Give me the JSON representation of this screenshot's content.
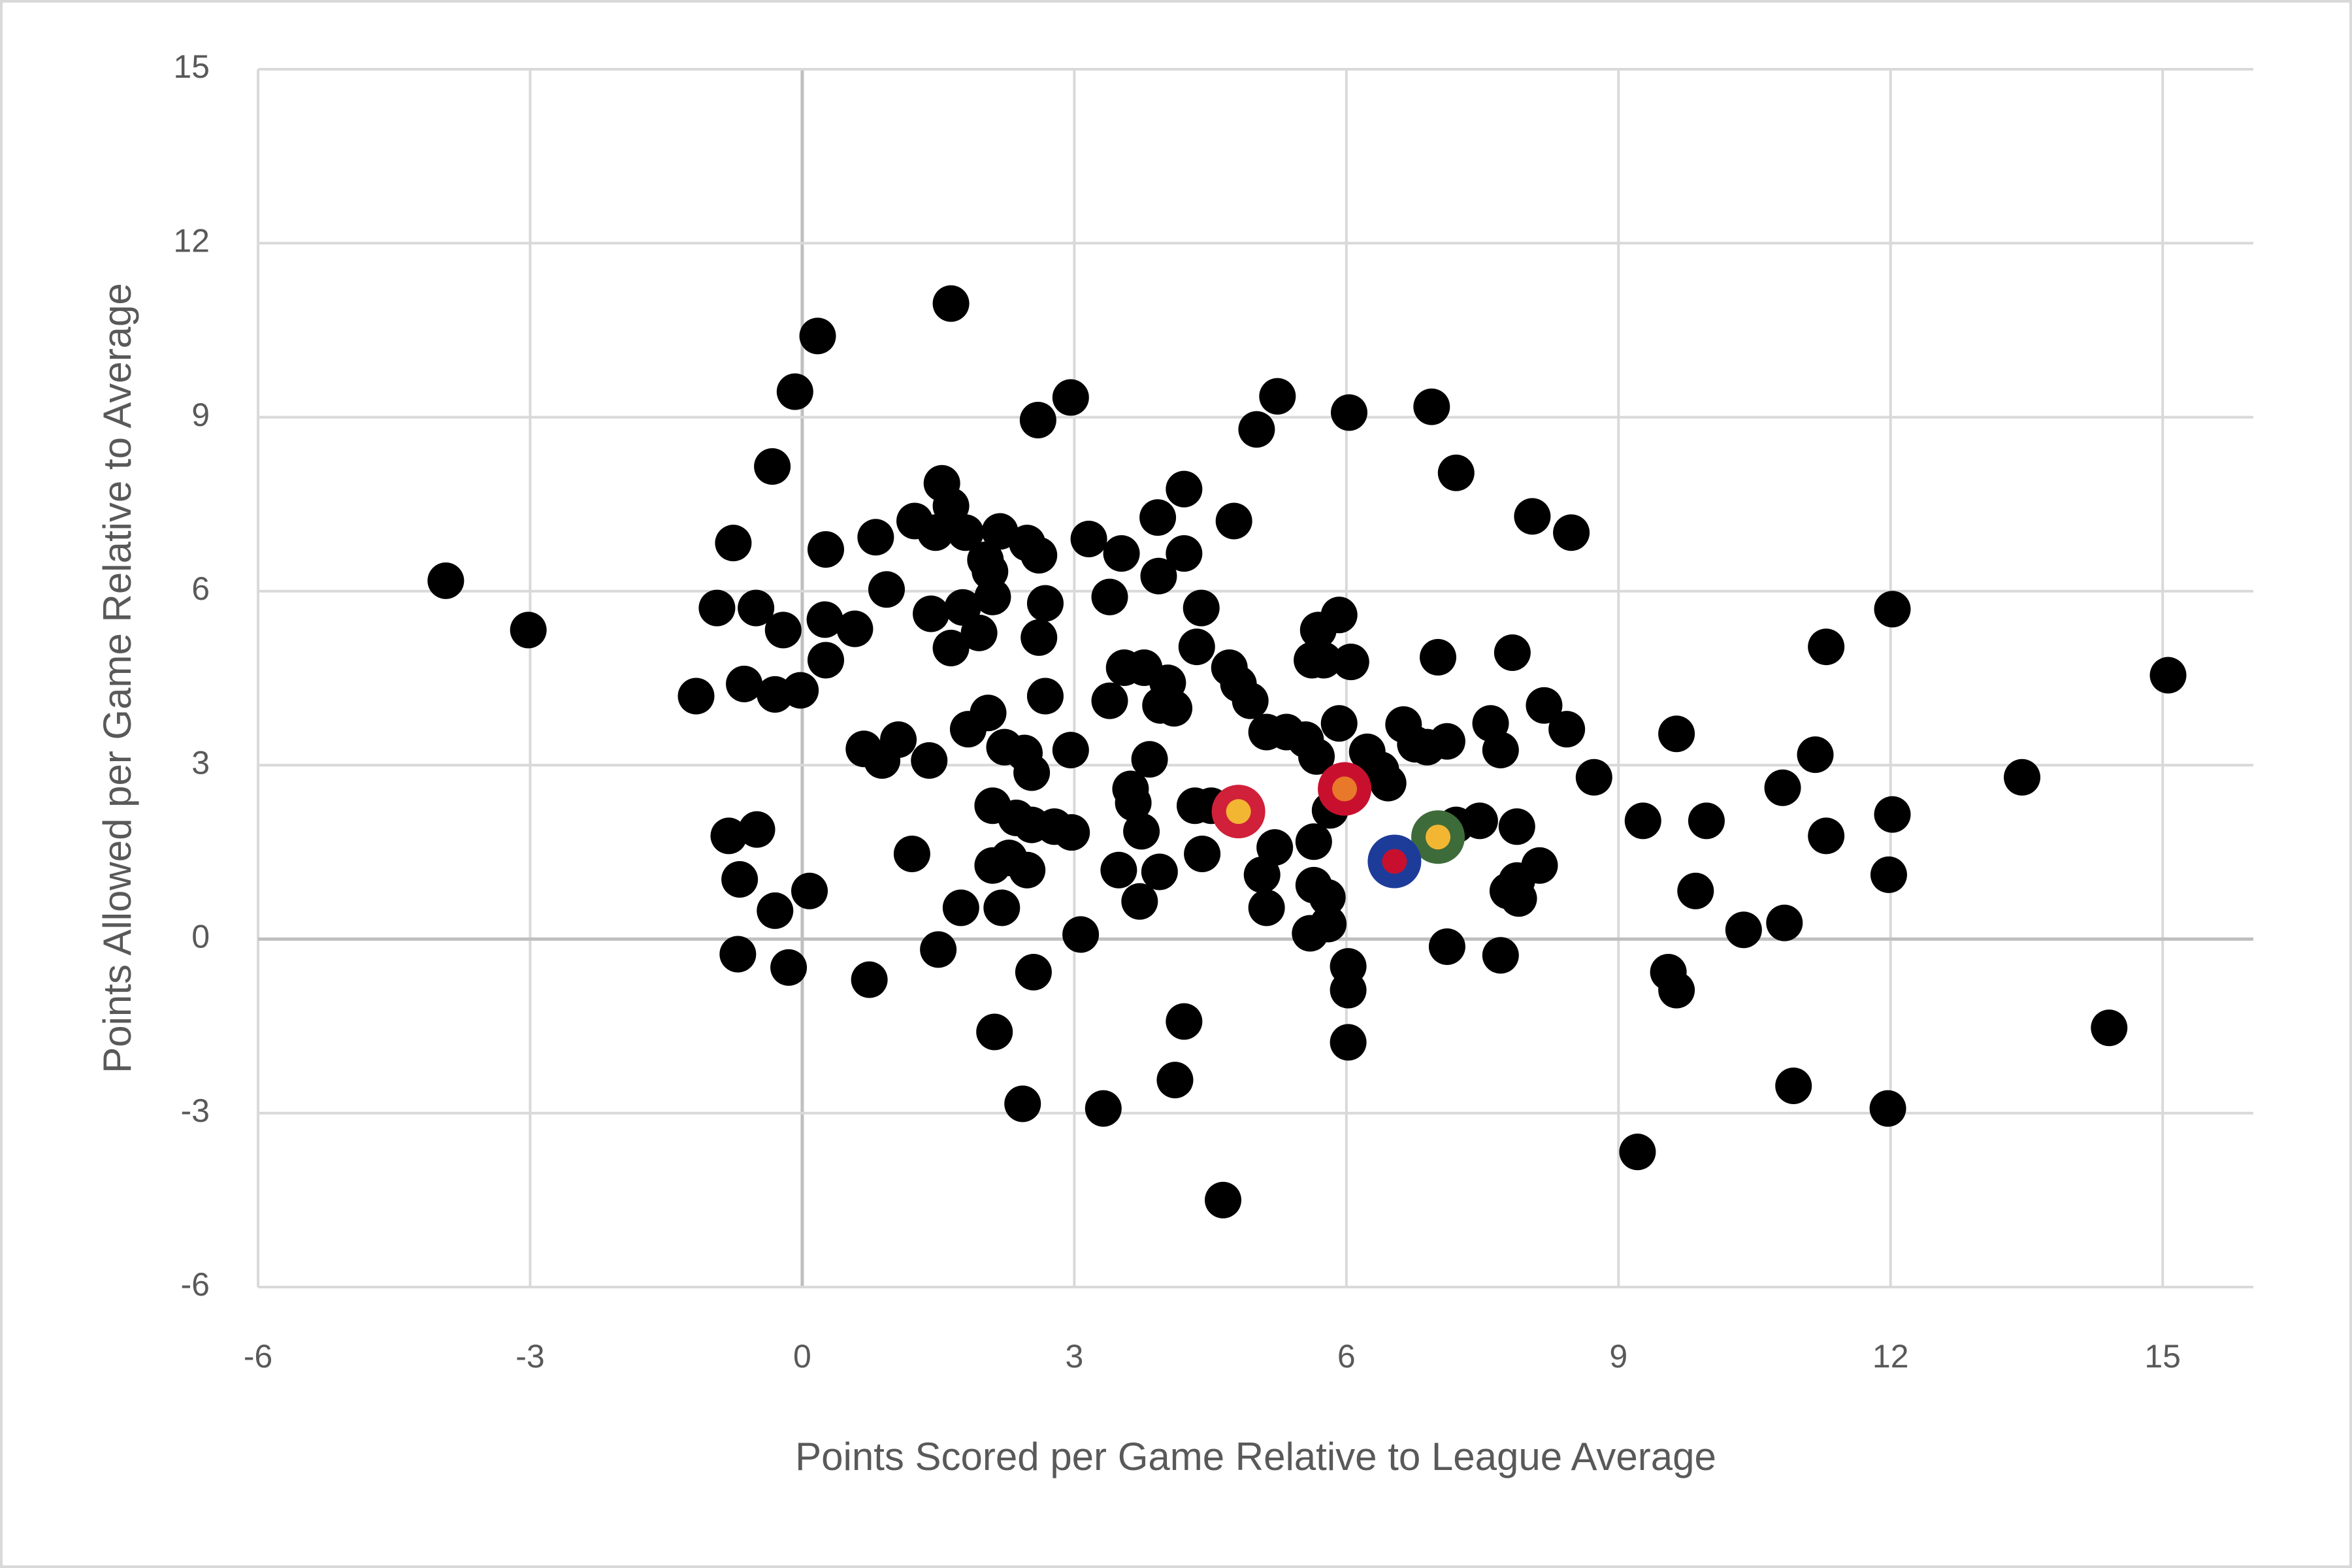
{
  "chart_data": {
    "type": "scatter",
    "x_label": "Points  Scored per Game Relative to League Average",
    "y_label": "Points  Allowed per Game Relative  to Average",
    "xlim": [
      -6,
      16
    ],
    "ylim": [
      -6,
      15
    ],
    "xticks": [
      -6,
      -3,
      0,
      3,
      6,
      9,
      12,
      15
    ],
    "yticks": [
      -6,
      -3,
      0,
      3,
      6,
      9,
      12,
      15
    ],
    "grid": true,
    "series": [
      {
        "color": "#000000",
        "x": [
          -3.93,
          -3.02,
          0.17,
          -0.08,
          1.64,
          -0.33,
          -0.76,
          0.26,
          0.81,
          -0.94,
          -0.51,
          -0.21,
          0.25,
          0.58,
          0.93,
          0.26,
          -1.17,
          -0.64,
          -0.3,
          -0.02,
          0.68,
          0.88,
          1.06,
          1.4,
          1.24,
          1.47,
          1.54,
          1.64,
          1.8,
          2.02,
          2.18,
          2.48,
          2.61,
          2.6,
          2.96,
          1.42,
          1.64,
          1.77,
          1.95,
          2.1,
          2.07,
          2.68,
          2.61,
          2.68,
          2.05,
          1.83,
          2.23,
          2.45,
          2.53,
          2.96,
          3.16,
          3.52,
          3.39,
          3.93,
          3.92,
          4.21,
          4.21,
          5.01,
          5.24,
          6.03,
          6.94,
          7.21,
          4.76,
          8.05,
          8.48,
          4.4,
          4.35,
          3.55,
          3.77,
          3.39,
          4.03,
          3.95,
          4.1,
          3.83,
          3.62,
          3.65,
          3.74,
          3.49,
          3.72,
          3.94,
          4.33,
          4.51,
          4.41,
          4.71,
          4.81,
          4.94,
          5.12,
          5.34,
          5.55,
          5.69,
          5.92,
          5.75,
          6.05,
          5.62,
          5.92,
          5.67,
          6.23,
          6.38,
          6.63,
          6.76,
          6.89,
          7.11,
          6.46,
          5.82,
          7.01,
          7.83,
          7.59,
          7.7,
          8.18,
          8.43,
          8.73,
          7.47,
          7.21,
          7.88,
          8.13,
          7.88,
          7.78,
          7.9,
          7.11,
          7.7,
          5.21,
          5.07,
          5.12,
          5.64,
          5.64,
          5.79,
          5.8,
          5.6,
          6.02,
          6.02,
          6.02,
          4.21,
          4.11,
          4.64,
          3.32,
          2.43,
          2.12,
          2.55,
          3.07,
          1.5,
          0.74,
          -0.15,
          -0.71,
          -0.3,
          0.08,
          -0.69,
          -0.81,
          -0.5,
          1.21,
          1.75,
          2.2,
          2.1,
          2.28,
          2.48,
          2.1,
          2.36,
          2.53,
          2.78,
          2.97,
          9.27,
          9.97,
          9.64,
          10.81,
          11.17,
          11.29,
          12.02,
          12.02,
          11.29,
          11.98,
          13.45,
          15.06,
          9.85,
          10.38,
          10.83,
          9.55,
          9.64,
          10.93,
          11.97,
          9.21,
          14.41
        ],
        "values": [
          6.18,
          5.33,
          10.4,
          9.44,
          10.96,
          8.15,
          6.83,
          6.72,
          6.93,
          5.71,
          5.71,
          5.33,
          5.51,
          5.35,
          6.03,
          4.81,
          4.19,
          4.4,
          4.22,
          4.29,
          3.28,
          3.08,
          3.44,
          3.08,
          7.21,
          7.01,
          7.86,
          7.47,
          7.01,
          6.54,
          7.03,
          6.83,
          6.62,
          8.95,
          9.34,
          5.61,
          5.02,
          5.72,
          5.28,
          5.9,
          6.34,
          5.79,
          5.2,
          4.19,
          3.9,
          3.62,
          3.31,
          3.21,
          2.87,
          3.26,
          6.9,
          6.65,
          5.9,
          6.26,
          7.27,
          7.76,
          6.65,
          8.79,
          9.36,
          9.08,
          9.18,
          8.04,
          7.21,
          7.29,
          7.01,
          5.71,
          5.04,
          4.68,
          4.68,
          4.11,
          4.42,
          4.03,
          3.98,
          3.1,
          2.59,
          2.35,
          1.86,
          1.19,
          0.65,
          1.16,
          2.3,
          2.3,
          1.47,
          4.68,
          4.4,
          4.11,
          3.57,
          3.57,
          3.44,
          5.33,
          5.59,
          4.81,
          4.78,
          4.81,
          3.72,
          3.15,
          3.23,
          2.92,
          3.7,
          3.36,
          3.31,
          3.41,
          2.69,
          2.22,
          4.86,
          4.94,
          3.72,
          3.26,
          4.03,
          3.62,
          2.79,
          2.04,
          1.97,
          1.94,
          1.27,
          1.01,
          0.83,
          0.7,
          -0.13,
          -0.28,
          1.58,
          1.11,
          0.54,
          1.68,
          0.93,
          0.72,
          0.26,
          0.1,
          -0.47,
          -0.88,
          -1.78,
          -1.42,
          -2.43,
          -4.5,
          -2.92,
          -2.84,
          -1.6,
          -0.57,
          0.08,
          -0.18,
          -0.7,
          -0.49,
          -0.26,
          0.49,
          0.83,
          1.03,
          1.78,
          1.89,
          1.47,
          0.54,
          0.54,
          1.27,
          1.4,
          1.19,
          2.3,
          2.09,
          1.97,
          1.94,
          1.84,
          2.04,
          2.04,
          3.54,
          2.61,
          3.18,
          5.04,
          5.69,
          2.15,
          1.78,
          1.11,
          2.79,
          4.55,
          0.83,
          0.16,
          0.28,
          -0.57,
          -0.88,
          -2.53,
          -2.92,
          -3.67,
          -1.53
        ]
      },
      {
        "color": "#d0203a",
        "inner_color": "#f2b632",
        "x": [
          4.81
        ],
        "values": [
          2.2
        ]
      },
      {
        "color": "#c8102e",
        "inner_color": "#e8782a",
        "x": [
          5.98
        ],
        "values": [
          2.59
        ]
      },
      {
        "color": "#3e6b3a",
        "inner_color": "#f2b632",
        "x": [
          7.01
        ],
        "values": [
          1.76
        ]
      },
      {
        "color": "#1d3c9a",
        "inner_color": "#c8102e",
        "x": [
          6.53
        ],
        "values": [
          1.34
        ]
      }
    ]
  }
}
